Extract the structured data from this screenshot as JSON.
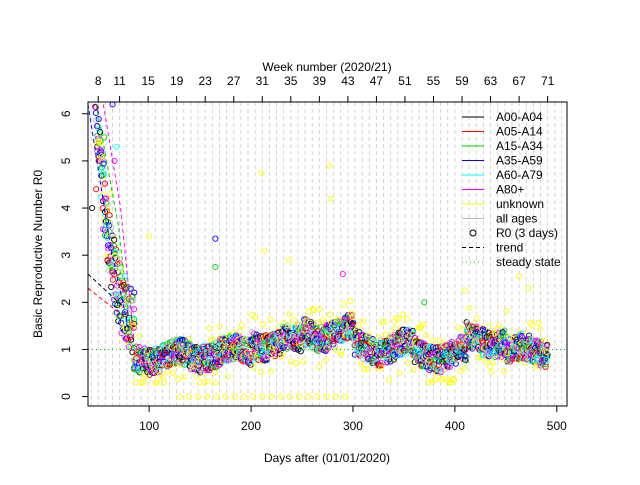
{
  "chart_data": {
    "type": "scatter",
    "title": "",
    "xlabel": "Days after (01/01/2020)",
    "ylabel": "Basic Reproductive Number R0",
    "top_axis_label": "Week number (2020/21)",
    "xlim": [
      40,
      510
    ],
    "ylim": [
      -0.2,
      6.25
    ],
    "x_ticks": [
      100,
      200,
      300,
      400,
      500
    ],
    "y_ticks": [
      0,
      1,
      2,
      3,
      4,
      5,
      6
    ],
    "top_ticks": [
      {
        "x": 50,
        "label": "8"
      },
      {
        "x": 71,
        "label": "11"
      },
      {
        "x": 99,
        "label": "15"
      },
      {
        "x": 127,
        "label": "19"
      },
      {
        "x": 155,
        "label": "23"
      },
      {
        "x": 183,
        "label": "27"
      },
      {
        "x": 211,
        "label": "31"
      },
      {
        "x": 239,
        "label": "35"
      },
      {
        "x": 267,
        "label": "39"
      },
      {
        "x": 295,
        "label": "43"
      },
      {
        "x": 323,
        "label": "47"
      },
      {
        "x": 351,
        "label": "51"
      },
      {
        "x": 379,
        "label": "55"
      },
      {
        "x": 407,
        "label": "59"
      },
      {
        "x": 435,
        "label": "63"
      },
      {
        "x": 463,
        "label": "67"
      },
      {
        "x": 491,
        "label": "71"
      }
    ],
    "grid": true,
    "grid_style": "dashed vertical lines every week",
    "steady_state": 1,
    "legend_position": "top-right",
    "legend": [
      {
        "label": "A00-A04",
        "color": "#000000",
        "kind": "line"
      },
      {
        "label": "A05-A14",
        "color": "#ff0000",
        "kind": "line"
      },
      {
        "label": "A15-A34",
        "color": "#00cd00",
        "kind": "line"
      },
      {
        "label": "A35-A59",
        "color": "#0000ff",
        "kind": "line"
      },
      {
        "label": "A60-A79",
        "color": "#00ffff",
        "kind": "line"
      },
      {
        "label": "A80+",
        "color": "#ff00ff",
        "kind": "line"
      },
      {
        "label": "unknown",
        "color": "#ffff00",
        "kind": "line"
      },
      {
        "label": "all ages",
        "color": "#bebebe",
        "kind": "line"
      },
      {
        "label": "R0 (3 days)",
        "color": "#000000",
        "kind": "circle"
      },
      {
        "label": "trend",
        "color": "#000000",
        "kind": "dashed"
      },
      {
        "label": "steady state",
        "color": "#00cd00",
        "kind": "dotted"
      }
    ],
    "series": [
      {
        "name": "A00-A04",
        "color": "#000000"
      },
      {
        "name": "A05-A14",
        "color": "#ff0000"
      },
      {
        "name": "A15-A34",
        "color": "#00cd00"
      },
      {
        "name": "A35-A59",
        "color": "#0000ff"
      },
      {
        "name": "A60-A79",
        "color": "#00ffff"
      },
      {
        "name": "A80+",
        "color": "#ff00ff"
      },
      {
        "name": "unknown",
        "color": "#ffff00"
      },
      {
        "name": "all ages",
        "color": "#bebebe"
      }
    ],
    "trend_lines": [
      {
        "color": "#000000",
        "points": [
          [
            40,
            2.6
          ],
          [
            75,
            1.9
          ]
        ]
      },
      {
        "color": "#ff0000",
        "points": [
          [
            40,
            2.3
          ],
          [
            75,
            1.7
          ]
        ]
      },
      {
        "color": "#0000ff",
        "points": [
          [
            40,
            6.2
          ],
          [
            62,
            3.2
          ],
          [
            80,
            1.4
          ]
        ]
      },
      {
        "color": "#00cd00",
        "points": [
          [
            48,
            6.2
          ],
          [
            70,
            3.6
          ],
          [
            82,
            1.3
          ]
        ]
      },
      {
        "color": "#ff00ff",
        "points": [
          [
            55,
            6.2
          ],
          [
            72,
            4.0
          ],
          [
            85,
            1.2
          ]
        ]
      }
    ],
    "key_points": {
      "early_peak": [
        [
          44,
          4.0
        ],
        [
          48,
          4.4
        ],
        [
          56,
          5.5
        ],
        [
          64,
          6.2
        ],
        [
          68,
          5.3
        ],
        [
          66,
          5.0
        ],
        [
          62,
          4.3
        ]
      ],
      "phase_means": [
        {
          "from": 85,
          "to": 150,
          "mean": 0.85
        },
        {
          "from": 150,
          "to": 200,
          "mean": 0.95
        },
        {
          "from": 200,
          "to": 250,
          "mean": 1.15
        },
        {
          "from": 250,
          "to": 300,
          "mean": 1.35
        },
        {
          "from": 300,
          "to": 360,
          "mean": 1.05
        },
        {
          "from": 360,
          "to": 410,
          "mean": 0.9
        },
        {
          "from": 410,
          "to": 450,
          "mean": 1.2
        },
        {
          "from": 450,
          "to": 490,
          "mean": 0.95
        }
      ],
      "outliers": [
        [
          165,
          3.35
        ],
        [
          165,
          2.75
        ],
        [
          210,
          4.75
        ],
        [
          213,
          3.1
        ],
        [
          277,
          4.9
        ],
        [
          278,
          4.2
        ],
        [
          237,
          2.9
        ],
        [
          290,
          2.6
        ],
        [
          410,
          2.25
        ],
        [
          463,
          2.55
        ],
        [
          472,
          2.3
        ],
        [
          370,
          2.0
        ],
        [
          100,
          3.4
        ]
      ]
    }
  }
}
